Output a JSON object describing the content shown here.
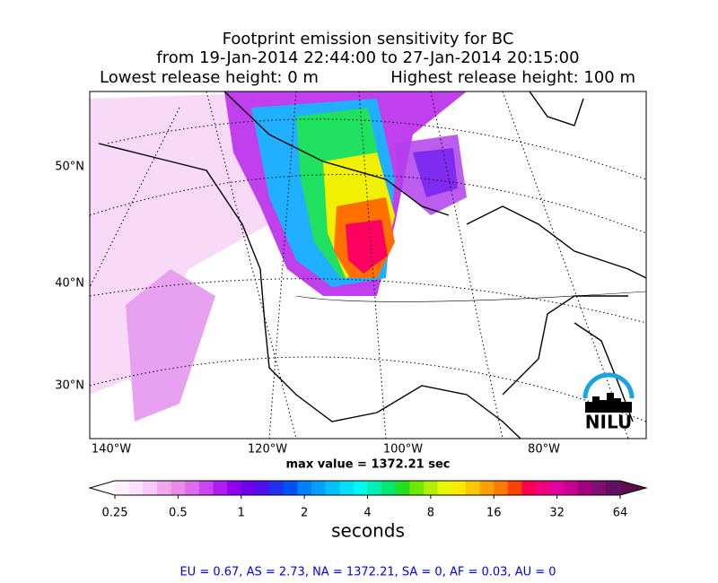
{
  "title": {
    "line1": "Footprint emission sensitivity for BC",
    "line2": "from 19-Jan-2014 22:44:00 to 27-Jan-2014 20:15:00",
    "lowest": "Lowest release height: 0 m",
    "highest": "Highest release height: 100 m"
  },
  "map": {
    "lat_labels": [
      "50°N",
      "40°N",
      "30°N"
    ],
    "lon_labels": [
      "140°W",
      "120°W",
      "100°W",
      "80°W"
    ],
    "max_value": "max value = 1372.21 sec",
    "logo": "NILU"
  },
  "colorbar": {
    "scale": "log",
    "lim": [
      0.25,
      64
    ],
    "ticks": [
      0.25,
      0.5,
      1,
      2,
      4,
      8,
      16,
      32,
      64
    ],
    "label": "seconds",
    "under_color": "#ffffff",
    "over_color": "#5a1050",
    "colors": [
      "#fff0ff",
      "#fde0fd",
      "#f8c8f8",
      "#f0a8f0",
      "#e88ce8",
      "#dc6cec",
      "#cc44ee",
      "#b01cf0",
      "#9000f0",
      "#7000ee",
      "#5010f0",
      "#2030f0",
      "#0050f8",
      "#0080ff",
      "#00a0ff",
      "#00c0ff",
      "#00e0ff",
      "#00f8f0",
      "#00f0b0",
      "#00e870",
      "#20e020",
      "#70e800",
      "#b0f000",
      "#e8f800",
      "#ffe800",
      "#ffc800",
      "#ffa000",
      "#ff7800",
      "#ff4000",
      "#ff0050",
      "#f00080",
      "#e000a0",
      "#c80090",
      "#a00080",
      "#801070",
      "#601060"
    ]
  },
  "footer": "EU = 0.67,  AS = 2.73,  NA = 1372.21,  SA = 0,  AF = 0.03,  AU = 0"
}
